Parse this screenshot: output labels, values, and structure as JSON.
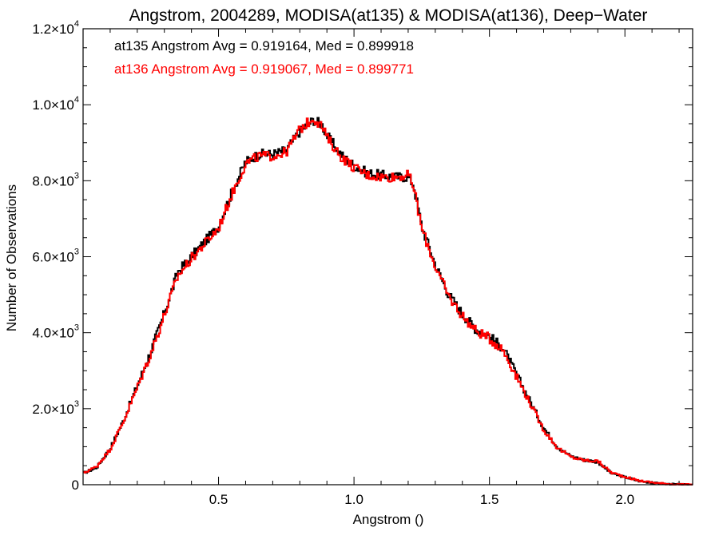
{
  "chart_data": {
    "type": "line",
    "title": "Angstrom, 2004289, MODISA(at135) & MODISA(at136), Deep−Water",
    "xlabel": "Angstrom ()",
    "ylabel": "Number of Observations",
    "xlim": [
      0.0,
      2.25
    ],
    "ylim": [
      0,
      12000
    ],
    "x_ticks": [
      {
        "value": 0.5,
        "label": "0.5"
      },
      {
        "value": 1.0,
        "label": "1.0"
      },
      {
        "value": 1.5,
        "label": "1.5"
      },
      {
        "value": 2.0,
        "label": "2.0"
      }
    ],
    "y_ticks": [
      {
        "value": 0,
        "mant": "0",
        "exp": ""
      },
      {
        "value": 2000,
        "mant": "2.0×10",
        "exp": "3"
      },
      {
        "value": 4000,
        "mant": "4.0×10",
        "exp": "3"
      },
      {
        "value": 6000,
        "mant": "6.0×10",
        "exp": "3"
      },
      {
        "value": 8000,
        "mant": "8.0×10",
        "exp": "3"
      },
      {
        "value": 10000,
        "mant": "1.0×10",
        "exp": "4"
      },
      {
        "value": 12000,
        "mant": "1.2×10",
        "exp": "4"
      }
    ],
    "grid": false,
    "legend": [
      {
        "text": "at135 Angstrom Avg = 0.919164, Med = 0.899918",
        "color": "#000000"
      },
      {
        "text": "at136 Angstrom Avg = 0.919067, Med = 0.899771",
        "color": "#ff0000"
      }
    ],
    "series": [
      {
        "name": "at135",
        "color": "#000000",
        "x": [
          0.0,
          0.05,
          0.1,
          0.15,
          0.2,
          0.25,
          0.3,
          0.35,
          0.4,
          0.45,
          0.5,
          0.55,
          0.6,
          0.65,
          0.7,
          0.75,
          0.8,
          0.85,
          0.88,
          0.9,
          0.95,
          1.0,
          1.05,
          1.1,
          1.15,
          1.2,
          1.22,
          1.25,
          1.3,
          1.35,
          1.4,
          1.45,
          1.5,
          1.55,
          1.6,
          1.65,
          1.7,
          1.75,
          1.8,
          1.85,
          1.9,
          1.95,
          2.0,
          2.05,
          2.1,
          2.15,
          2.2,
          2.25
        ],
        "y": [
          300,
          450,
          950,
          1700,
          2600,
          3500,
          4500,
          5600,
          6000,
          6400,
          6800,
          7700,
          8500,
          8700,
          8700,
          8800,
          9300,
          9600,
          9500,
          9200,
          8700,
          8400,
          8200,
          8150,
          8100,
          8100,
          7900,
          6800,
          5800,
          5000,
          4500,
          4100,
          3900,
          3600,
          2900,
          2200,
          1500,
          1000,
          750,
          650,
          600,
          300,
          200,
          100,
          50,
          20,
          5,
          0
        ]
      },
      {
        "name": "at136",
        "color": "#ff0000",
        "x": [
          0.0,
          0.05,
          0.1,
          0.15,
          0.2,
          0.25,
          0.3,
          0.35,
          0.4,
          0.45,
          0.5,
          0.55,
          0.6,
          0.65,
          0.7,
          0.75,
          0.8,
          0.85,
          0.88,
          0.9,
          0.95,
          1.0,
          1.05,
          1.1,
          1.15,
          1.2,
          1.22,
          1.25,
          1.3,
          1.35,
          1.4,
          1.45,
          1.5,
          1.55,
          1.6,
          1.65,
          1.7,
          1.75,
          1.8,
          1.85,
          1.9,
          1.95,
          2.0,
          2.05,
          2.1,
          2.15,
          2.2,
          2.25
        ],
        "y": [
          300,
          480,
          930,
          1680,
          2550,
          3450,
          4450,
          5500,
          5950,
          6350,
          6750,
          7650,
          8450,
          8650,
          8650,
          8750,
          9350,
          9650,
          9450,
          9150,
          8650,
          8350,
          8150,
          8100,
          8100,
          8150,
          7850,
          6750,
          5750,
          4950,
          4450,
          4050,
          3850,
          3550,
          2850,
          2150,
          1450,
          980,
          730,
          640,
          620,
          320,
          210,
          110,
          60,
          25,
          5,
          0
        ]
      }
    ]
  }
}
